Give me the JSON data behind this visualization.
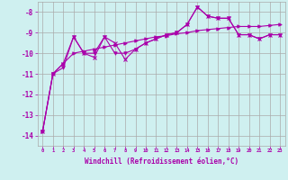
{
  "xlabel": "Windchill (Refroidissement éolien,°C)",
  "bg_color": "#cff0f0",
  "grid_color": "#aaaaaa",
  "line_color": "#aa00aa",
  "xlim": [
    -0.5,
    23.5
  ],
  "ylim": [
    -14.5,
    -7.5
  ],
  "yticks": [
    -14,
    -13,
    -12,
    -11,
    -10,
    -9,
    -8
  ],
  "xticks": [
    0,
    1,
    2,
    3,
    4,
    5,
    6,
    7,
    8,
    9,
    10,
    11,
    12,
    13,
    14,
    15,
    16,
    17,
    18,
    19,
    20,
    21,
    22,
    23
  ],
  "series1": [
    [
      0,
      -13.8
    ],
    [
      1,
      -11.0
    ],
    [
      2,
      -10.5
    ],
    [
      3,
      -9.2
    ],
    [
      4,
      -10.0
    ],
    [
      5,
      -10.2
    ],
    [
      6,
      -9.2
    ],
    [
      7,
      -9.5
    ],
    [
      8,
      -10.3
    ],
    [
      9,
      -9.8
    ],
    [
      10,
      -9.5
    ],
    [
      11,
      -9.3
    ],
    [
      12,
      -9.1
    ],
    [
      13,
      -9.0
    ],
    [
      14,
      -8.6
    ],
    [
      15,
      -7.75
    ],
    [
      16,
      -8.2
    ],
    [
      17,
      -8.3
    ],
    [
      18,
      -8.3
    ],
    [
      19,
      -9.1
    ],
    [
      20,
      -9.1
    ],
    [
      21,
      -9.3
    ],
    [
      22,
      -9.1
    ],
    [
      23,
      -9.1
    ]
  ],
  "series2": [
    [
      0,
      -13.8
    ],
    [
      1,
      -11.0
    ],
    [
      2,
      -10.5
    ],
    [
      3,
      -10.0
    ],
    [
      4,
      -9.9
    ],
    [
      5,
      -9.8
    ],
    [
      6,
      -9.7
    ],
    [
      7,
      -9.6
    ],
    [
      8,
      -9.5
    ],
    [
      9,
      -9.4
    ],
    [
      10,
      -9.3
    ],
    [
      11,
      -9.2
    ],
    [
      12,
      -9.15
    ],
    [
      13,
      -9.05
    ],
    [
      14,
      -9.0
    ],
    [
      15,
      -8.9
    ],
    [
      16,
      -8.85
    ],
    [
      17,
      -8.8
    ],
    [
      18,
      -8.75
    ],
    [
      19,
      -8.7
    ],
    [
      20,
      -8.7
    ],
    [
      21,
      -8.7
    ],
    [
      22,
      -8.65
    ],
    [
      23,
      -8.6
    ]
  ],
  "series3": [
    [
      0,
      -13.8
    ],
    [
      1,
      -11.0
    ],
    [
      2,
      -10.7
    ],
    [
      3,
      -9.2
    ],
    [
      4,
      -10.0
    ],
    [
      5,
      -10.0
    ],
    [
      6,
      -9.2
    ],
    [
      7,
      -10.0
    ],
    [
      8,
      -10.0
    ],
    [
      9,
      -9.8
    ],
    [
      10,
      -9.5
    ],
    [
      11,
      -9.3
    ],
    [
      12,
      -9.1
    ],
    [
      13,
      -9.0
    ],
    [
      14,
      -8.6
    ],
    [
      15,
      -7.75
    ],
    [
      16,
      -8.2
    ],
    [
      17,
      -8.3
    ],
    [
      18,
      -8.3
    ],
    [
      19,
      -9.1
    ],
    [
      20,
      -9.1
    ],
    [
      21,
      -9.3
    ],
    [
      22,
      -9.1
    ],
    [
      23,
      -9.1
    ]
  ]
}
